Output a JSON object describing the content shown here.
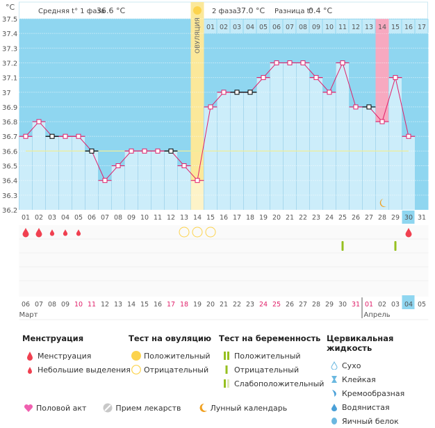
{
  "header": {
    "phase1_label": "Средняя t° 1 фаза",
    "phase1_value": "36.6 °C",
    "phase2_label": "2 фаза",
    "phase2_value": "37.0 °C",
    "diff_label": "Разница t°",
    "diff_value": "0.4 °C",
    "ovulation_label": "ОВУЛЯЦИЯ"
  },
  "chart_data": {
    "type": "bar",
    "yunit": "°C",
    "ylim": [
      36.2,
      37.5
    ],
    "yticks": [
      "36.2",
      "36.3",
      "36.4",
      "36.5",
      "36.6",
      "36.7",
      "36.8",
      "36.9",
      "37",
      "37.1",
      "37.2",
      "37.3",
      "37.4",
      "37.5"
    ],
    "cycle_days": [
      "01",
      "02",
      "03",
      "04",
      "05",
      "06",
      "07",
      "08",
      "09",
      "10",
      "11",
      "12",
      "13",
      "14",
      "15",
      "16",
      "17",
      "18",
      "19",
      "20",
      "21",
      "22",
      "23",
      "24",
      "25",
      "26",
      "27",
      "28",
      "29",
      "30",
      "31"
    ],
    "phase2_days": [
      "01",
      "02",
      "03",
      "04",
      "05",
      "06",
      "07",
      "08",
      "09",
      "10",
      "11",
      "12",
      "13",
      "14",
      "15",
      "16",
      "17"
    ],
    "temperatures": [
      36.7,
      36.8,
      36.7,
      36.7,
      36.7,
      36.6,
      36.4,
      36.5,
      36.6,
      36.6,
      36.6,
      36.6,
      36.5,
      36.4,
      36.9,
      37.0,
      37.0,
      37.0,
      37.1,
      37.2,
      37.2,
      37.2,
      37.1,
      37.0,
      37.2,
      36.9,
      36.9,
      36.8,
      37.1,
      36.7,
      null
    ],
    "excluded_days": [
      3,
      6,
      12,
      17,
      18,
      27
    ],
    "coverline": 36.6,
    "ovulation_day": 14,
    "highlighted_phase2_day": 14,
    "today_cycle_day": 30,
    "moon_day": 28,
    "menstruation": {
      "1": "heavy",
      "2": "heavy",
      "3": "light",
      "4": "light",
      "5": "light",
      "30": "heavy"
    },
    "ovulation_tests": {
      "13": "negative",
      "14": "negative",
      "15": "negative"
    },
    "pregnancy_tests": {
      "25": "negative",
      "29": "negative"
    },
    "calendar_dates": [
      "06",
      "07",
      "08",
      "09",
      "10",
      "11",
      "12",
      "13",
      "14",
      "15",
      "16",
      "17",
      "18",
      "19",
      "20",
      "21",
      "22",
      "23",
      "24",
      "25",
      "26",
      "27",
      "28",
      "29",
      "30",
      "31",
      "01",
      "02",
      "03",
      "04",
      "05"
    ],
    "weekend_dates_idx": [
      4,
      5,
      11,
      12,
      18,
      19,
      25,
      26
    ],
    "today_date_idx": 29,
    "months": [
      "Март",
      "Апрель"
    ],
    "colors": {
      "sky": "#8fd6f0",
      "bar": "#ccedfa",
      "ovulation": "#fbe89a",
      "pink": "#f7a9c0",
      "line": "#e0206a",
      "coverline": "#eeee99",
      "weekend": "#e0206a",
      "blood": "#f04050",
      "test_green": "#96c020"
    }
  },
  "legend": {
    "menstruation": {
      "title": "Менструация",
      "items": [
        "Менструация",
        "Небольшие выделения"
      ]
    },
    "ovulation_test": {
      "title": "Тест на овуляцию",
      "items": [
        "Положительный",
        "Отрицательный"
      ]
    },
    "pregnancy_test": {
      "title": "Тест на беременность",
      "items": [
        "Положительный",
        "Отрицательный",
        "Слабоположительный"
      ]
    },
    "cervical": {
      "title": "Цервикальная жидкость",
      "items": [
        "Сухо",
        "Клейкая",
        "Кремообразная",
        "Водянистая",
        "Яичный белок"
      ]
    },
    "bottom": [
      "Половой акт",
      "Прием лекарств",
      "Лунный календарь"
    ]
  }
}
